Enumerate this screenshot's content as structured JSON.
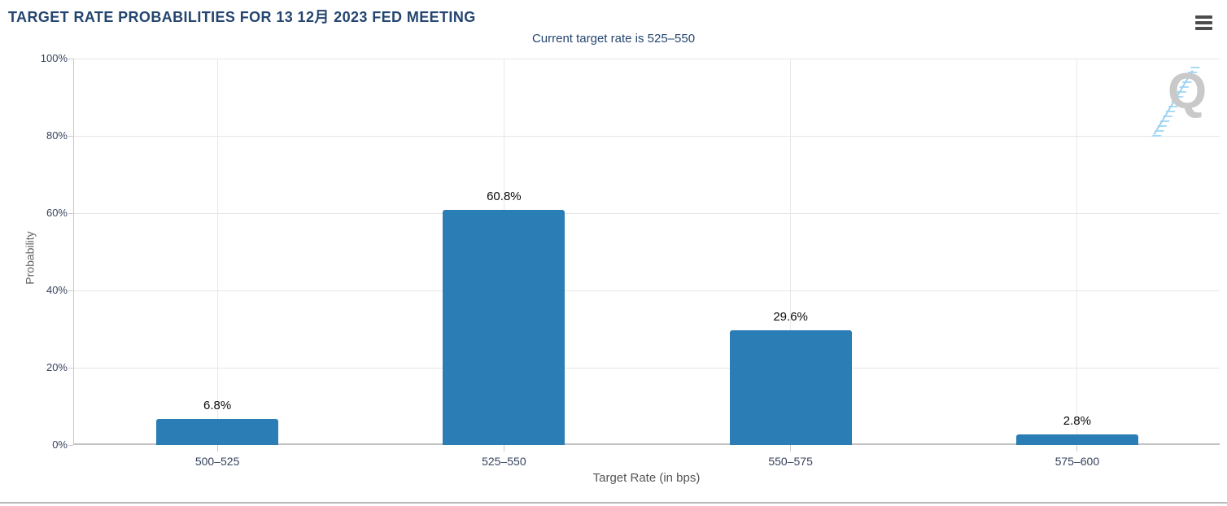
{
  "panel": {
    "menu_icon": "hamburger-icon"
  },
  "chart_data": {
    "type": "bar",
    "title": "TARGET RATE PROBABILITIES FOR 13 12月 2023 FED MEETING",
    "subtitle": "Current target rate is 525–550",
    "categories": [
      "500–525",
      "525–550",
      "550–575",
      "575–600"
    ],
    "values": [
      6.8,
      60.8,
      29.6,
      2.8
    ],
    "value_labels": [
      "6.8%",
      "60.8%",
      "29.6%",
      "2.8%"
    ],
    "xlabel": "Target Rate (in bps)",
    "ylabel": "Probability",
    "ylim": [
      0,
      100
    ],
    "ytick_values": [
      0,
      20,
      40,
      60,
      80,
      100
    ],
    "ytick_labels": [
      "0%",
      "20%",
      "40%",
      "60%",
      "80%",
      "100%"
    ],
    "grid": true,
    "legend": "none",
    "bar_color": "#2a7db5",
    "watermark_letter": "Q"
  },
  "colors": {
    "title_navy": "#24456f",
    "bar_blue": "#2a7db5",
    "tick_text": "#36425c",
    "watermark_gray": "#c9c9c9",
    "watermark_blue": "#a9daf5"
  }
}
